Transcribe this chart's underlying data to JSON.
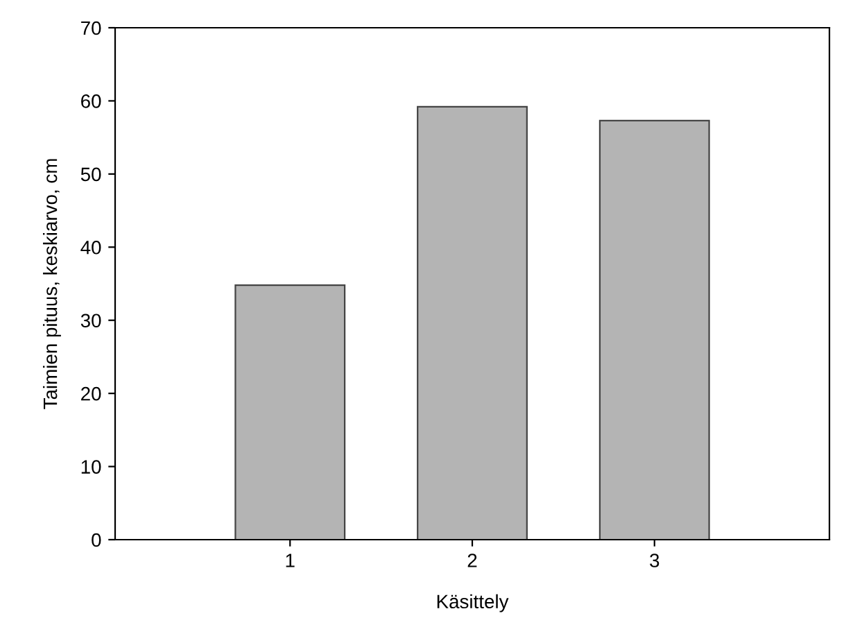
{
  "chart_data": {
    "type": "bar",
    "xlabel": "Käsittely",
    "ylabel": "Taimien pituus, keskiarvo, cm",
    "categories": [
      "1",
      "2",
      "3"
    ],
    "values": [
      34.8,
      59.2,
      57.3
    ],
    "color": "#b4b4b4",
    "ylim": [
      0,
      70
    ],
    "yticks": [
      0,
      10,
      20,
      30,
      40,
      50,
      60,
      70
    ],
    "grid": false
  }
}
